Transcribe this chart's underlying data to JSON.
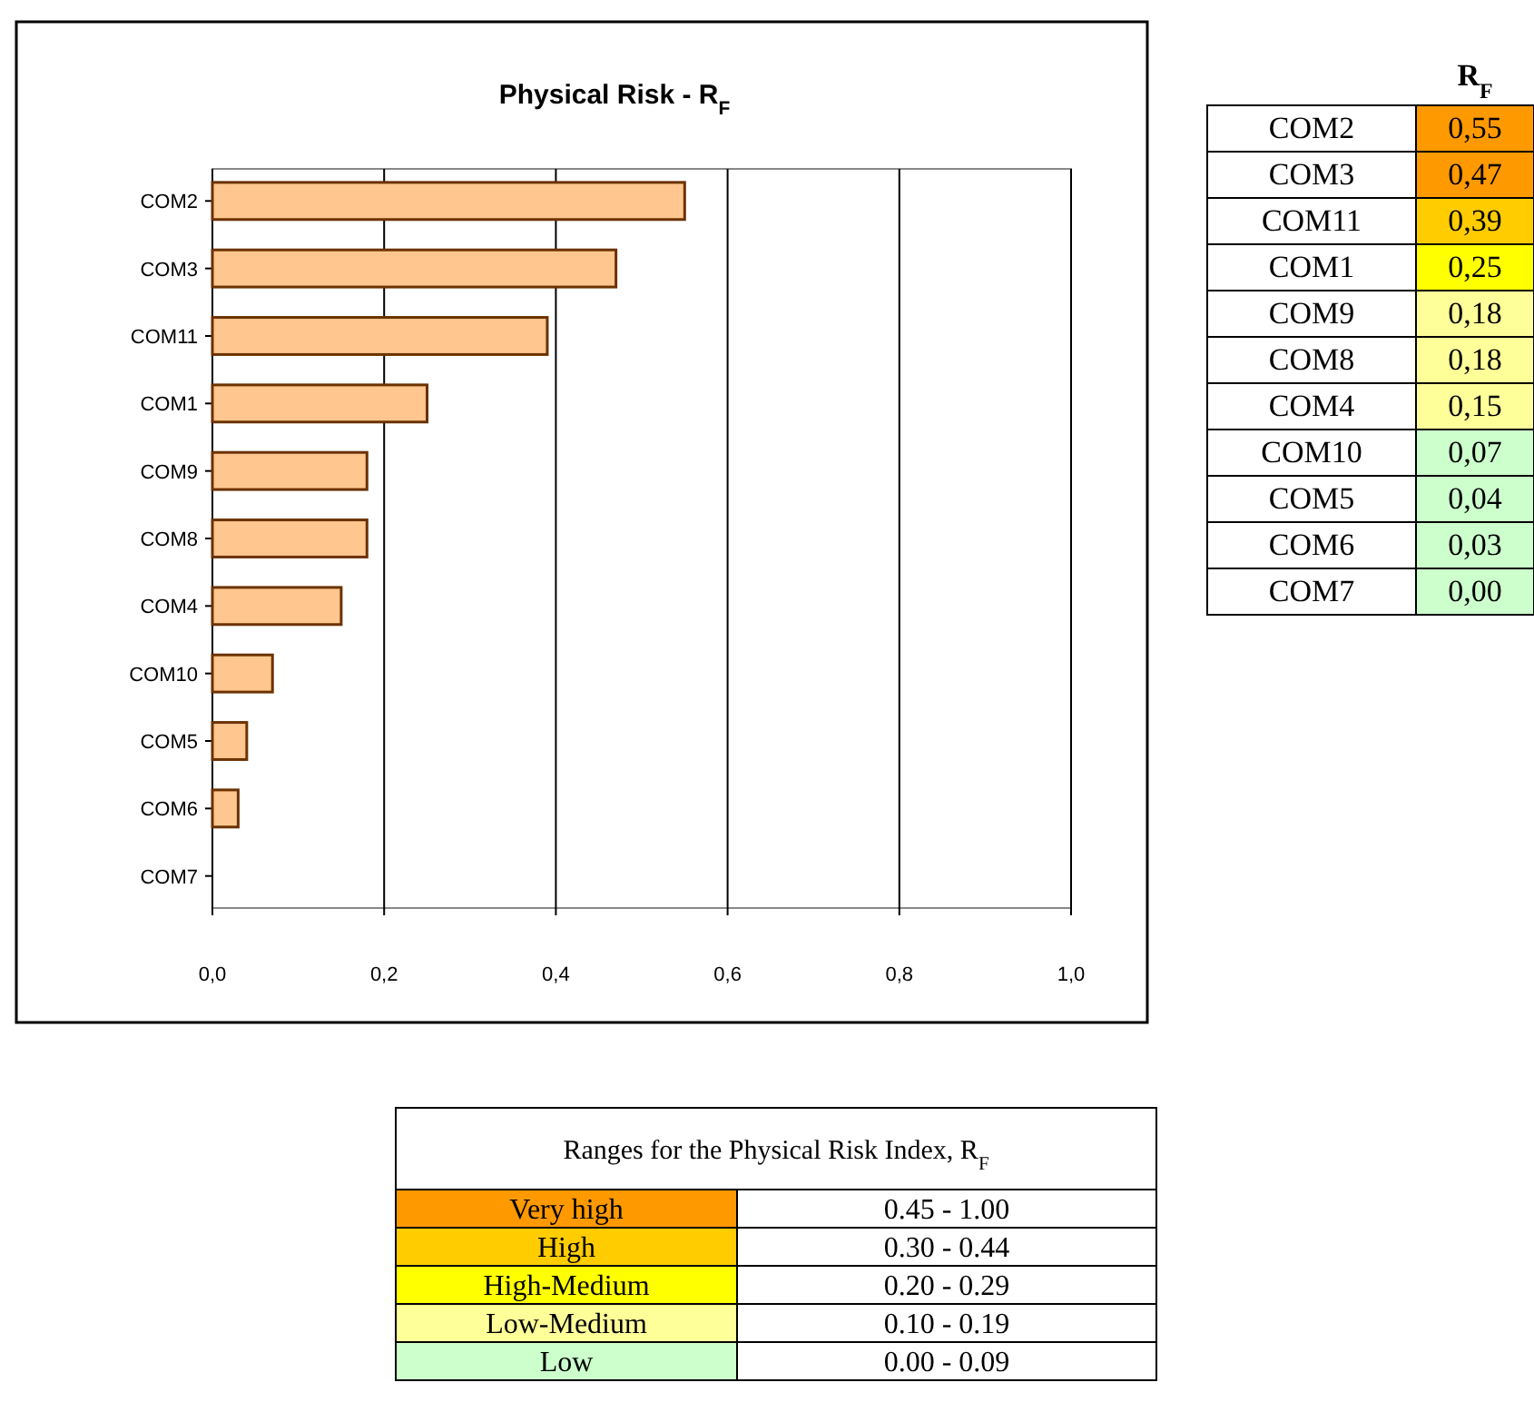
{
  "chart_data": [
    {
      "type": "bar",
      "orientation": "horizontal",
      "title": "Physical Risk - R$_{F}$",
      "categories": [
        "COM2",
        "COM3",
        "COM11",
        "COM1",
        "COM9",
        "COM8",
        "COM4",
        "COM10",
        "COM5",
        "COM6",
        "COM7"
      ],
      "values": [
        0.55,
        0.47,
        0.39,
        0.25,
        0.18,
        0.18,
        0.15,
        0.07,
        0.04,
        0.03,
        0.0
      ],
      "color": "#ffc68f",
      "xlim": [
        0,
        1
      ],
      "xticks": [
        {
          "value": 0,
          "label": "0,0"
        },
        {
          "value": 0.2,
          "label": "0,2"
        },
        {
          "value": 0.4,
          "label": "0,4"
        },
        {
          "value": 0.6,
          "label": "0,6"
        },
        {
          "value": 0.8,
          "label": "0,8"
        },
        {
          "value": 1,
          "label": "1,0"
        }
      ],
      "grid": "x"
    },
    {
      "type": "other",
      "title": "R$_{F}$",
      "categories": [
        "COM2",
        "COM3",
        "COM11",
        "COM1",
        "COM9",
        "COM8",
        "COM4",
        "COM10",
        "COM5",
        "COM6",
        "COM7"
      ],
      "colors": [
        "#ff9900",
        "#ff9900",
        "#ffcc00",
        "#ffff00",
        "#ffff99",
        "#ffff99",
        "#ffff99",
        "#ccffcc",
        "#ccffcc",
        "#ccffcc",
        "#ccffcc"
      ],
      "annotations": [
        "0,55",
        "0,47",
        "0,39",
        "0,25",
        "0,18",
        "0,18",
        "0,15",
        "0,07",
        "0,04",
        "0,03",
        "0,00"
      ]
    },
    {
      "type": "other",
      "title": "Ranges for the Physical Risk Index, R$_{F}$",
      "categories": [
        "Very high",
        "High",
        "High-Medium",
        "Low-Medium",
        "Low"
      ],
      "colors": [
        "#ff9900",
        "#ffcc00",
        "#ffff00",
        "#ffff99",
        "#ccffcc"
      ],
      "annotations": [
        "0.45 - 1.00",
        "0.30 - 0.44",
        "0.20 - 0.29",
        "0.10 - 0.19",
        "0.00 - 0.09"
      ]
    }
  ]
}
